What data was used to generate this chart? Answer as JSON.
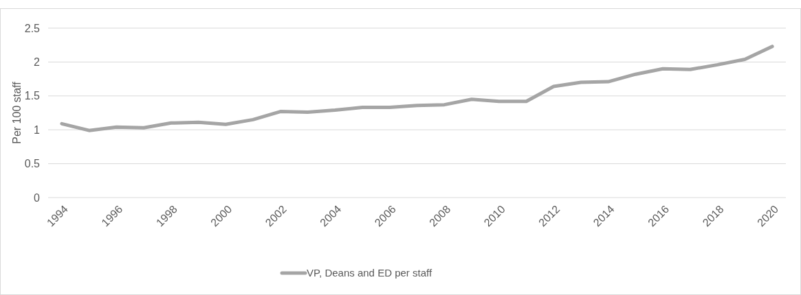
{
  "chart_data": {
    "type": "line",
    "ylabel": "Per 100 staff",
    "x": [
      1994,
      1995,
      1996,
      1997,
      1998,
      1999,
      2000,
      2001,
      2002,
      2003,
      2004,
      2005,
      2006,
      2007,
      2008,
      2009,
      2010,
      2011,
      2012,
      2013,
      2014,
      2015,
      2016,
      2017,
      2018,
      2019,
      2020
    ],
    "series": [
      {
        "name": "VP, Deans and ED per staff",
        "color": "#a5a5a5",
        "values": [
          1.09,
          0.99,
          1.04,
          1.03,
          1.1,
          1.11,
          1.08,
          1.15,
          1.27,
          1.26,
          1.29,
          1.33,
          1.33,
          1.36,
          1.37,
          1.45,
          1.42,
          1.42,
          1.64,
          1.7,
          1.71,
          1.82,
          1.9,
          1.89,
          1.96,
          2.04,
          2.23
        ]
      }
    ],
    "xlim": [
      1993.5,
      2020.5
    ],
    "xticks": [
      1994,
      1996,
      1998,
      2000,
      2002,
      2004,
      2006,
      2008,
      2010,
      2012,
      2014,
      2016,
      2018,
      2020
    ],
    "ylim": [
      0,
      2.5
    ],
    "yticks": [
      0,
      0.5,
      1,
      1.5,
      2,
      2.5
    ],
    "grid": "y",
    "legend": "bottom",
    "marker": "none",
    "line_style": "solid"
  }
}
